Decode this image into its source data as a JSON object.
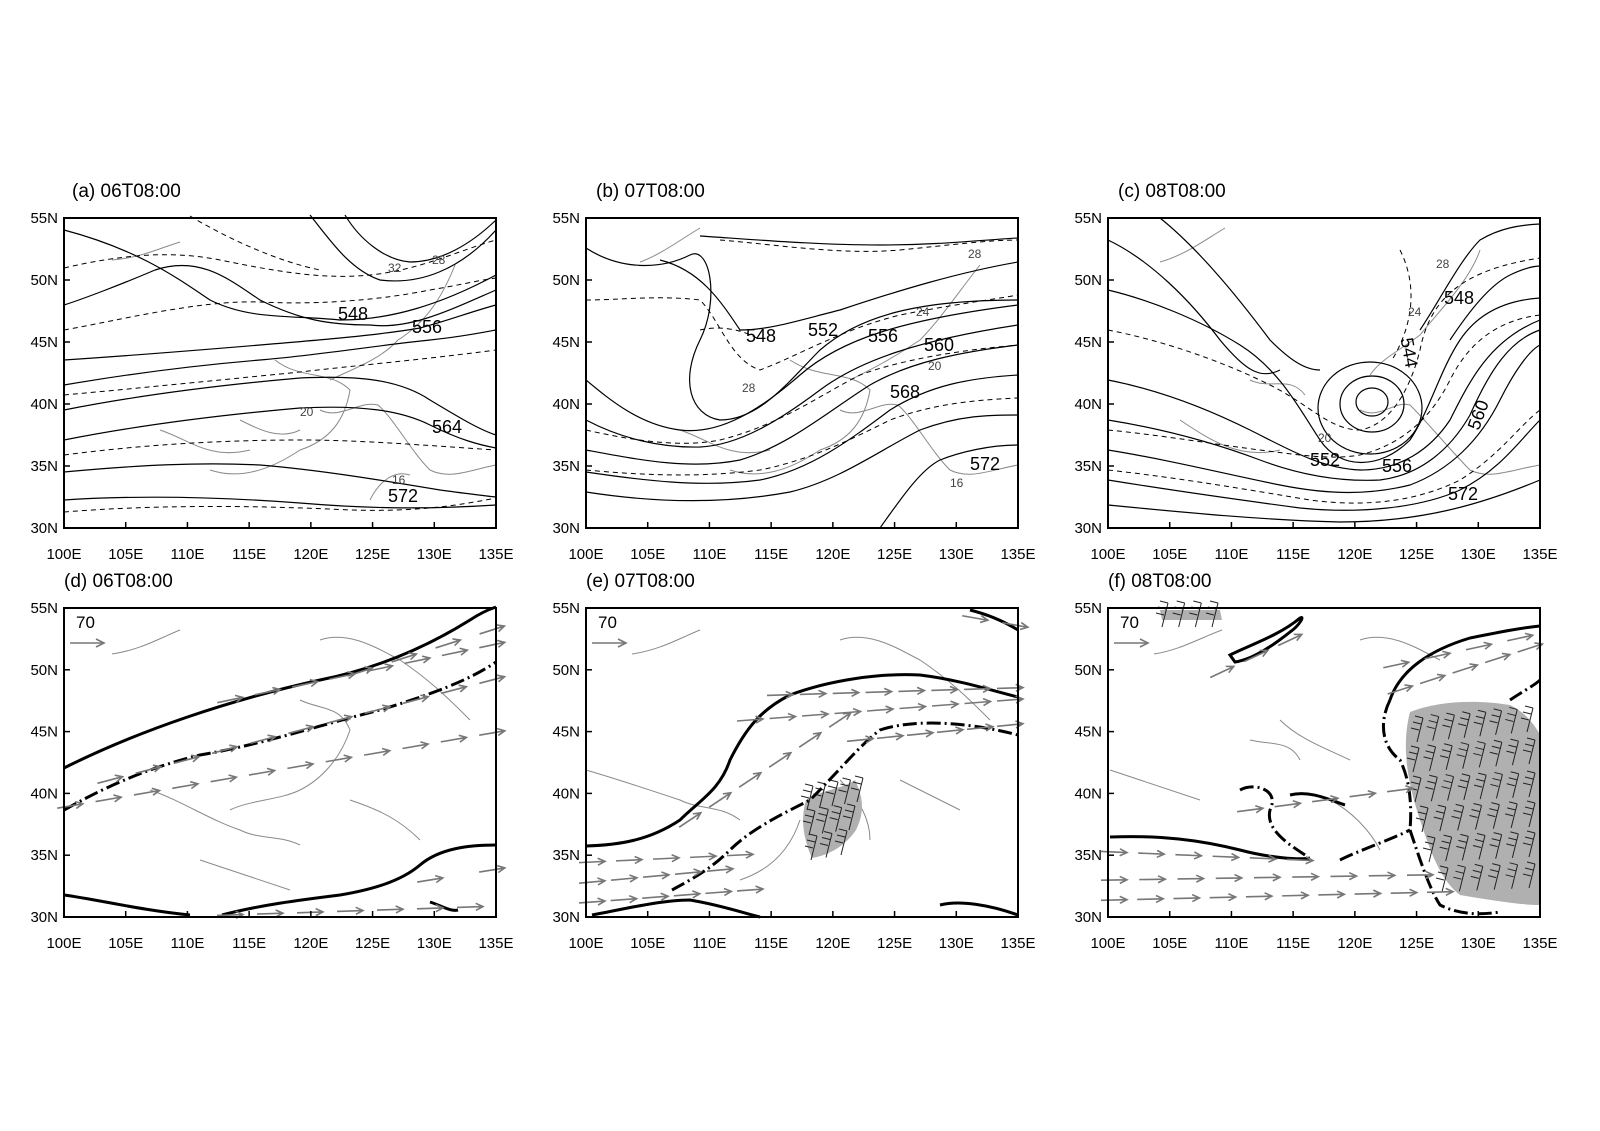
{
  "figure": {
    "x_ticks": [
      "100E",
      "105E",
      "110E",
      "115E",
      "120E",
      "125E",
      "130E",
      "135E"
    ],
    "y_ticks": [
      "55N",
      "50N",
      "45N",
      "40N",
      "35N",
      "30N"
    ],
    "wind_reference_label": "70",
    "colors": {
      "height_contour": "#000000",
      "temperature_contour": "#000000",
      "coastline": "#8a8a8a",
      "wind_vector": "#777777",
      "shading": "#b0b0b0",
      "jet_boundary": "#000000"
    },
    "panels": [
      {
        "id": "a",
        "title": "(a) 06T08:00",
        "height_labels": [
          "548",
          "556",
          "564",
          "572"
        ],
        "temperature_labels": [
          "32",
          "28",
          "20",
          "16"
        ]
      },
      {
        "id": "b",
        "title": "(b) 07T08:00",
        "height_labels": [
          "548",
          "552",
          "556",
          "560",
          "568",
          "572"
        ],
        "temperature_labels": [
          "28",
          "28",
          "24",
          "20",
          "16"
        ]
      },
      {
        "id": "c",
        "title": "(c) 08T08:00",
        "height_labels": [
          "548",
          "544",
          "552",
          "556",
          "560",
          "572"
        ],
        "temperature_labels": [
          "28",
          "24",
          "20"
        ]
      },
      {
        "id": "d",
        "title": "(d) 06T08:00"
      },
      {
        "id": "e",
        "title": "(e) 07T08:00"
      },
      {
        "id": "f",
        "title": "(f) 08T08:00"
      }
    ]
  }
}
